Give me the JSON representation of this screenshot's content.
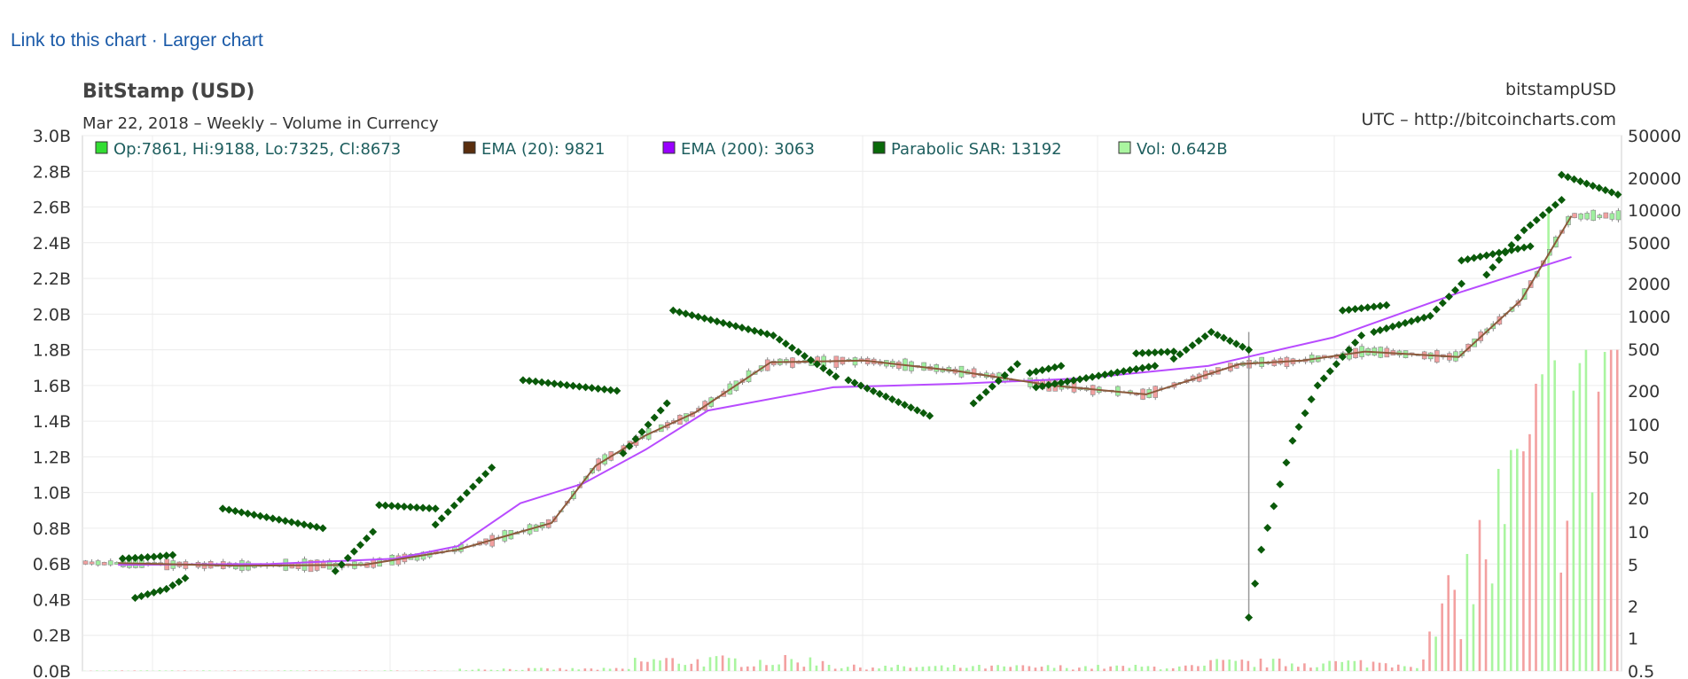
{
  "links": {
    "link_chart": "Link to this chart",
    "separator": " · ",
    "larger_chart": "Larger chart"
  },
  "chart_data": {
    "type": "candlestick",
    "title": "BitStamp (USD)",
    "subtitle": "Mar 22, 2018 – Weekly – Volume in Currency",
    "top_right_label": "bitstampUSD",
    "source_label": "UTC – http://bitcoincharts.com",
    "legend": [
      {
        "label": "Op:7861, Hi:9188, Lo:7325, Cl:8673",
        "color": "#33dd33"
      },
      {
        "label": "EMA (20): 9821",
        "color": "#5a2e0e"
      },
      {
        "label": "EMA (200): 3063",
        "color": "#9900ff"
      },
      {
        "label": "Parabolic SAR: 13192",
        "color": "#0a6a0a"
      },
      {
        "label": "Vol: 0.642B",
        "color": "#aaf5a0"
      }
    ],
    "left_axis": {
      "label": "volume",
      "ylim": [
        0,
        3.0
      ],
      "ticks": [
        "0.0B",
        "0.2B",
        "0.4B",
        "0.6B",
        "0.8B",
        "1.0B",
        "1.2B",
        "1.4B",
        "1.6B",
        "1.8B",
        "2.0B",
        "2.2B",
        "2.4B",
        "2.6B",
        "2.8B",
        "3.0B"
      ]
    },
    "right_axis": {
      "scale": "log",
      "ticks": [
        "50000",
        "20000",
        "10000",
        "5000",
        "2000",
        "1000",
        "500",
        "200",
        "100",
        "50",
        "20",
        "10",
        "5",
        "2",
        "1",
        "0.5"
      ]
    },
    "ema20_points": [
      [
        5.7,
        6.05
      ],
      [
        25,
        5.9
      ],
      [
        45,
        5.95
      ],
      [
        60,
        6.8
      ],
      [
        75,
        8.3
      ],
      [
        82,
        11.5
      ],
      [
        90,
        13.2
      ],
      [
        98,
        14.5
      ],
      [
        110,
        17.3
      ],
      [
        125,
        17.4
      ],
      [
        140,
        16.8
      ],
      [
        155,
        16.0
      ],
      [
        170,
        15.5
      ],
      [
        185,
        17.2
      ],
      [
        195,
        17.4
      ],
      [
        205,
        17.9
      ],
      [
        220,
        17.6
      ],
      [
        230,
        20.8
      ],
      [
        238,
        25.5
      ]
    ],
    "ema200_points": [
      [
        5.7,
        5.95
      ],
      [
        30,
        6.0
      ],
      [
        50,
        6.3
      ],
      [
        60,
        7.0
      ],
      [
        70,
        9.4
      ],
      [
        80,
        10.5
      ],
      [
        90,
        12.4
      ],
      [
        100,
        14.6
      ],
      [
        120,
        15.9
      ],
      [
        140,
        16.1
      ],
      [
        160,
        16.4
      ],
      [
        180,
        17.1
      ],
      [
        200,
        18.7
      ],
      [
        220,
        21.2
      ],
      [
        238,
        23.2
      ]
    ],
    "sar_segments": [
      [
        [
          6,
          6.3
        ],
        [
          11,
          6.4
        ],
        [
          14,
          6.5
        ]
      ],
      [
        [
          8,
          4.1
        ],
        [
          13,
          4.6
        ],
        [
          16,
          5.2
        ]
      ],
      [
        [
          22,
          9.1
        ],
        [
          38,
          8.0
        ]
      ],
      [
        [
          40,
          5.6
        ],
        [
          46,
          7.8
        ]
      ],
      [
        [
          47,
          9.3
        ],
        [
          56,
          9.1
        ]
      ],
      [
        [
          56,
          8.2
        ],
        [
          65,
          11.4
        ]
      ],
      [
        [
          70,
          16.3
        ],
        [
          85,
          15.7
        ]
      ],
      [
        [
          86,
          12.2
        ],
        [
          93,
          15.0
        ]
      ],
      [
        [
          94,
          20.2
        ],
        [
          110,
          18.8
        ],
        [
          120,
          16.5
        ]
      ],
      [
        [
          122,
          16.3
        ],
        [
          135,
          14.3
        ]
      ],
      [
        [
          142,
          15.0
        ],
        [
          149,
          17.2
        ]
      ],
      [
        [
          151,
          16.7
        ],
        [
          156,
          17.1
        ]
      ],
      [
        [
          152,
          15.9
        ],
        [
          166,
          16.8
        ],
        [
          171,
          17.1
        ]
      ],
      [
        [
          168,
          17.8
        ],
        [
          174,
          17.9
        ]
      ],
      [
        [
          174,
          17.5
        ],
        [
          180,
          19.0
        ],
        [
          186,
          18.0
        ]
      ],
      [
        [
          186,
          3.0
        ],
        [
          188,
          6.8
        ],
        [
          193,
          12.9
        ],
        [
          197,
          16.0
        ],
        [
          204,
          18.8
        ]
      ],
      [
        [
          201,
          20.2
        ],
        [
          208,
          20.5
        ]
      ],
      [
        [
          206,
          19.0
        ],
        [
          215,
          19.9
        ],
        [
          220,
          21.7
        ]
      ],
      [
        [
          220,
          23.0
        ],
        [
          231,
          23.8
        ]
      ],
      [
        [
          224,
          22.2
        ],
        [
          230,
          24.7
        ],
        [
          236,
          26.4
        ]
      ],
      [
        [
          236,
          27.8
        ],
        [
          245,
          26.7
        ]
      ]
    ]
  }
}
